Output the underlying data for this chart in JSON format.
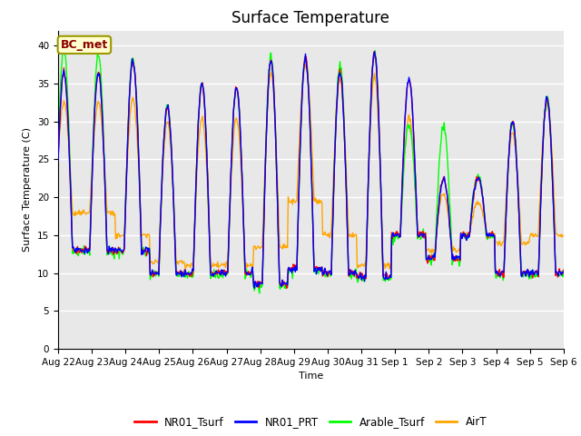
{
  "title": "Surface Temperature",
  "xlabel": "Time",
  "ylabel": "Surface Temperature (C)",
  "ylim": [
    0,
    42
  ],
  "yticks": [
    0,
    5,
    10,
    15,
    20,
    25,
    30,
    35,
    40
  ],
  "annotation_text": "BC_met",
  "annotation_color": "#8B0000",
  "annotation_bg": "#FFFFD0",
  "annotation_border": "#999900",
  "bg_color": "#E8E8E8",
  "grid_color": "#FFFFFF",
  "legend_entries": [
    "NR01_Tsurf",
    "NR01_PRT",
    "Arable_Tsurf",
    "AirT"
  ],
  "line_colors": [
    "red",
    "blue",
    "lime",
    "orange"
  ],
  "xtick_labels": [
    "Aug 22",
    "Aug 23",
    "Aug 24",
    "Aug 25",
    "Aug 26",
    "Aug 27",
    "Aug 28",
    "Aug 29",
    "Aug 30",
    "Aug 31",
    "Sep 1",
    "Sep 2",
    "Sep 3",
    "Sep 4",
    "Sep 5",
    "Sep 6"
  ],
  "title_fontsize": 12,
  "axis_label_fontsize": 8,
  "tick_fontsize": 7.5,
  "legend_fontsize": 8.5
}
